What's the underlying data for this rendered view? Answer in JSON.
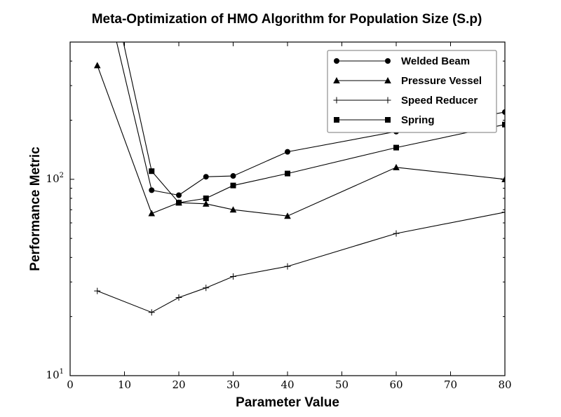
{
  "chart_data": {
    "type": "line",
    "title": "Meta-Optimization of HMO Algorithm for Population Size (S.p)",
    "xlabel": "Parameter Value",
    "ylabel": "Performance Metric",
    "xlim": [
      0,
      80
    ],
    "ylim": [
      10,
      500
    ],
    "yscale": "log",
    "xticks": [
      0,
      10,
      20,
      30,
      40,
      50,
      60,
      70,
      80
    ],
    "xtick_labels": [
      "0",
      "10",
      "20",
      "30",
      "40",
      "50",
      "60",
      "70",
      "80"
    ],
    "ytick_labels": [
      {
        "value": 10,
        "base": "10",
        "exp": "1"
      },
      {
        "value": 100,
        "base": "10",
        "exp": "2"
      }
    ],
    "grid": false,
    "legend_position": "top-right",
    "series": [
      {
        "name": "Welded Beam",
        "marker": "circle",
        "x": [
          5,
          15,
          20,
          25,
          30,
          40,
          60,
          80
        ],
        "y": [
          1300,
          88,
          83,
          103,
          104,
          138,
          175,
          220
        ]
      },
      {
        "name": "Pressure Vessel",
        "marker": "triangle",
        "x": [
          5,
          15,
          20,
          25,
          30,
          40,
          60,
          80
        ],
        "y": [
          380,
          67,
          76,
          75,
          70,
          65,
          115,
          100
        ]
      },
      {
        "name": "Speed Reducer",
        "marker": "plus",
        "x": [
          5,
          15,
          20,
          25,
          30,
          40,
          60,
          80
        ],
        "y": [
          27,
          21,
          25,
          28,
          32,
          36,
          53,
          68
        ]
      },
      {
        "name": "Spring",
        "marker": "square",
        "x": [
          5,
          15,
          20,
          25,
          30,
          40,
          60,
          80
        ],
        "y": [
          2000,
          110,
          76,
          80,
          93,
          107,
          145,
          190
        ]
      }
    ]
  }
}
